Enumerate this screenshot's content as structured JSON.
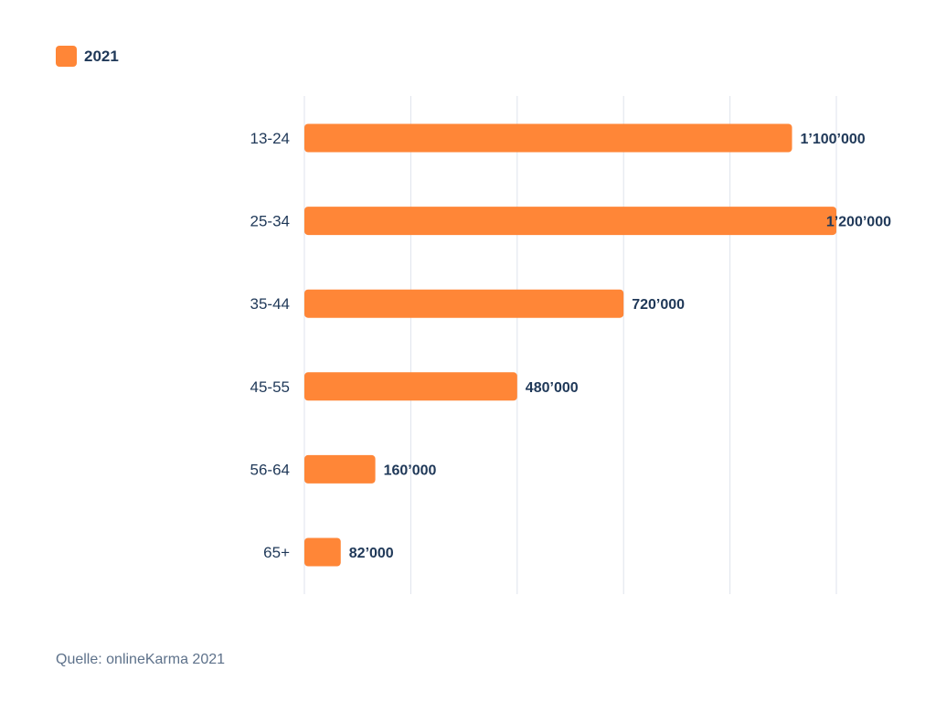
{
  "chart_data": {
    "type": "bar",
    "orientation": "horizontal",
    "categories": [
      "13-24",
      "25-34",
      "35-44",
      "45-55",
      "56-64",
      "65+"
    ],
    "series": [
      {
        "name": "2021",
        "values": [
          1100000,
          1200000,
          720000,
          480000,
          160000,
          82000
        ],
        "data_labels": [
          "1’100’000",
          "1’200’000",
          "720’000",
          "480’000",
          "160’000",
          "82’000"
        ],
        "color": "#ff8637"
      }
    ],
    "xlim": [
      0,
      1200000
    ],
    "gridlines_at": [
      0,
      240000,
      480000,
      720000,
      960000,
      1200000
    ],
    "grid": true,
    "legend_position": "top-left",
    "title": "",
    "xlabel": "",
    "ylabel": ""
  },
  "colors": {
    "bar": "#ff8637",
    "text": "#1f3858",
    "grid": "#dfe3ec",
    "source_text": "#5d718a"
  },
  "legend": {
    "label": "2021"
  },
  "source": "Quelle: onlineKarma 2021"
}
